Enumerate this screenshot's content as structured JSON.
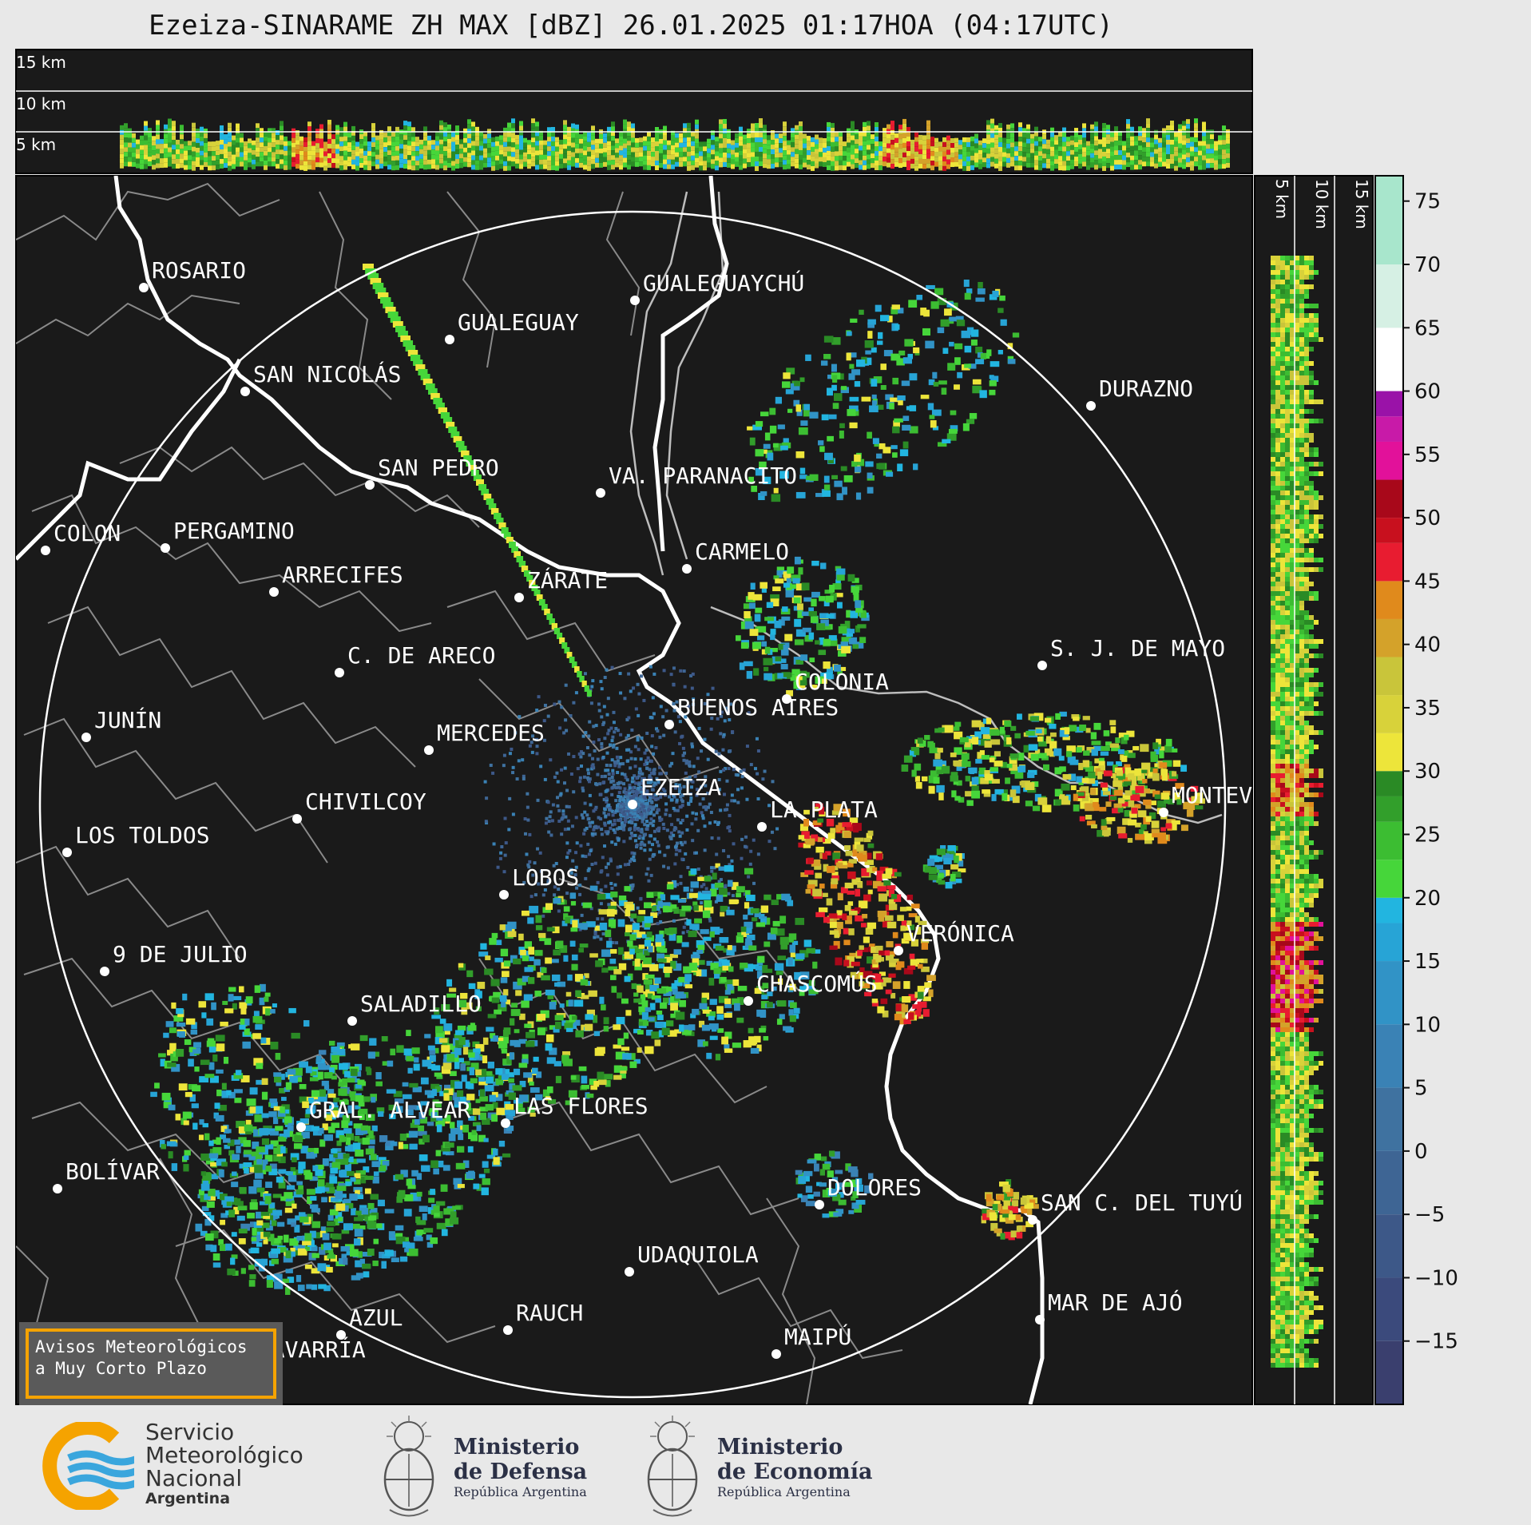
{
  "title": "Ezeiza-SINARAME ZH MAX [dBZ] 26.01.2025 01:17HOA (04:17UTC)",
  "top_panel_heights": [
    "15 km",
    "10 km",
    "5 km"
  ],
  "side_panel_heights": [
    "5 km",
    "10 km",
    "15 km"
  ],
  "colorbar": {
    "ticks": [
      "75",
      "70",
      "65",
      "60",
      "55",
      "50",
      "45",
      "40",
      "35",
      "30",
      "25",
      "20",
      "15",
      "10",
      "5",
      "0",
      "−5",
      "−10",
      "−15"
    ],
    "tick_values": [
      75,
      70,
      65,
      60,
      55,
      50,
      45,
      40,
      35,
      30,
      25,
      20,
      15,
      10,
      5,
      0,
      -5,
      -10,
      -15
    ],
    "range": [
      -20,
      77
    ]
  },
  "cities": [
    {
      "name": "ROSARIO"
    },
    {
      "name": "GUALEGUAYCHÚ"
    },
    {
      "name": "GUALEGUAY"
    },
    {
      "name": "SAN NICOLÁS"
    },
    {
      "name": "DURAZNO"
    },
    {
      "name": "SAN PEDRO"
    },
    {
      "name": "VA. PARANACITO"
    },
    {
      "name": "COLON"
    },
    {
      "name": "PERGAMINO"
    },
    {
      "name": "CARMELO"
    },
    {
      "name": "ARRECIFES"
    },
    {
      "name": "ZÁRATE"
    },
    {
      "name": "C. DE ARECO"
    },
    {
      "name": "S. J. DE MAYO"
    },
    {
      "name": "COLONIA"
    },
    {
      "name": "JUNÍN"
    },
    {
      "name": "BUENOS AIRES"
    },
    {
      "name": "MERCEDES"
    },
    {
      "name": "EZEIZA"
    },
    {
      "name": "MONTEV"
    },
    {
      "name": "CHIVILCOY"
    },
    {
      "name": "LA PLATA"
    },
    {
      "name": "LOS TOLDOS"
    },
    {
      "name": "LOBOS"
    },
    {
      "name": "VERÓNICA"
    },
    {
      "name": "9 DE JULIO"
    },
    {
      "name": "CHASCOMÚS"
    },
    {
      "name": "SALADILLO"
    },
    {
      "name": "GRAL. ALVEAR"
    },
    {
      "name": "LAS FLORES"
    },
    {
      "name": "BOLÍVAR"
    },
    {
      "name": "DOLORES"
    },
    {
      "name": "SAN C. DEL TUYÚ"
    },
    {
      "name": "UDAQUIOLA"
    },
    {
      "name": "MAR DE AJÓ"
    },
    {
      "name": "AZUL"
    },
    {
      "name": "RAUCH"
    },
    {
      "name": "OLAVARRÍA"
    },
    {
      "name": "MAIPÚ"
    }
  ],
  "warning": {
    "line1": "Avisos Meteorológicos",
    "line2": "a Muy Corto Plazo"
  },
  "footer": {
    "smn": {
      "line1": "Servicio",
      "line2": "Meteorológico",
      "line3": "Nacional",
      "line4": "Argentina"
    },
    "defensa": {
      "line1": "Ministerio",
      "line2": "de Defensa",
      "line3": "República Argentina"
    },
    "economia": {
      "line1": "Ministerio",
      "line2": "de Economía",
      "line3": "República Argentina"
    }
  },
  "colors": {
    "map_bg": "#1a1a1a",
    "coast": "#ffffff",
    "border": "#888888",
    "warning_border": "#f5a300"
  }
}
